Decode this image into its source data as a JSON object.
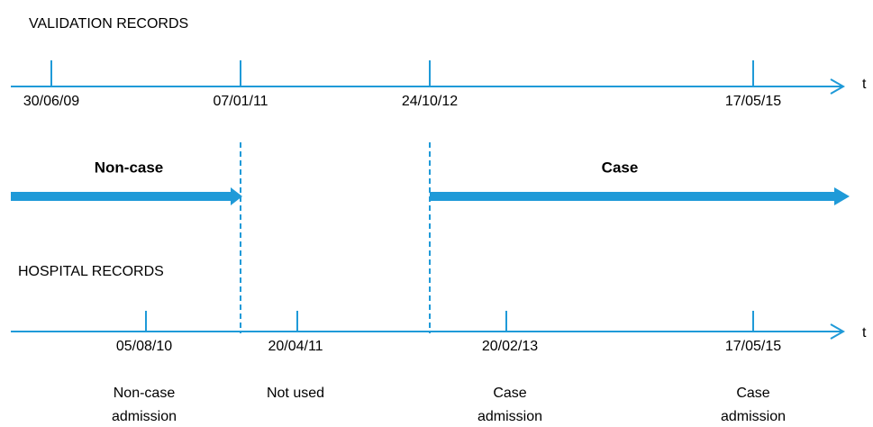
{
  "validation": {
    "title": "VALIDATION RECORDS",
    "axis_label": "t",
    "dates": [
      "30/06/09",
      "07/01/11",
      "24/10/12",
      "17/05/15"
    ]
  },
  "periods": [
    {
      "label": "Non-case"
    },
    {
      "label": "Case"
    }
  ],
  "hospital": {
    "title": "HOSPITAL RECORDS",
    "axis_label": "t",
    "records": [
      {
        "date": "05/08/10",
        "description": [
          "Non-case",
          "admission"
        ]
      },
      {
        "date": "20/04/11",
        "description": [
          "Not used"
        ]
      },
      {
        "date": "20/02/13",
        "description": [
          "Case",
          "admission"
        ]
      },
      {
        "date": "17/05/15",
        "description": [
          "Case",
          "admission"
        ]
      }
    ]
  }
}
